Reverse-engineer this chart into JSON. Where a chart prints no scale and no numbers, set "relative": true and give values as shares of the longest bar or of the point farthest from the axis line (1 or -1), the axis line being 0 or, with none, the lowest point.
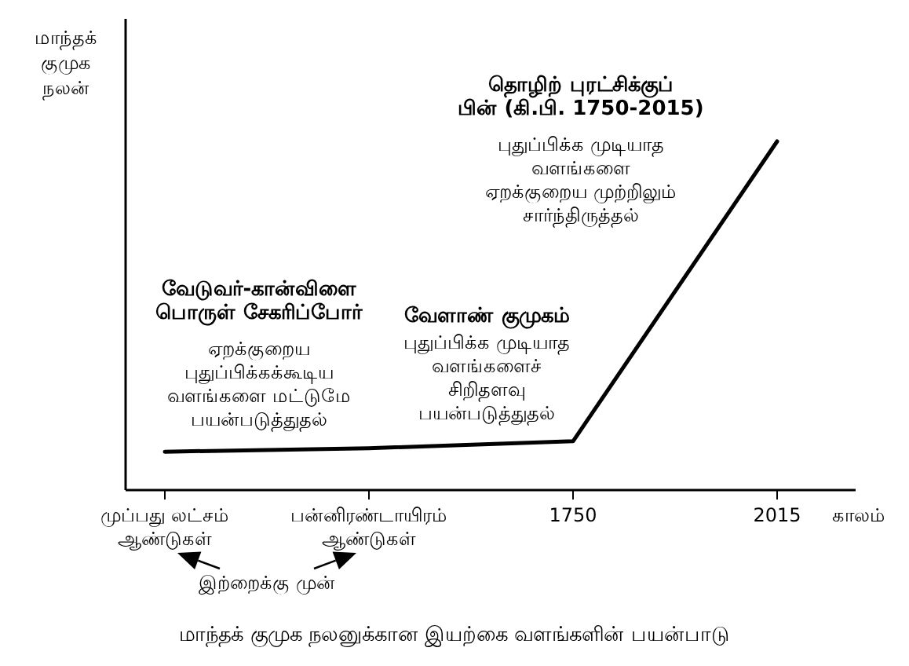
{
  "chart_data": {
    "type": "line",
    "relative": true,
    "title": "மாந்தக் குமுக நலனுக்கான இயற்கை வளங்களின் பயன்பாடு",
    "ylabel": "மாந்தக் குமுக நலன்",
    "xlabel": "காலம்",
    "categories": [
      "முப்பது லட்சம் ஆண்டுகள்",
      "பன்னிரண்டாயிரம் ஆண்டுகள்",
      "1750",
      "2015"
    ],
    "series": [
      {
        "color": "#000000",
        "values": [
          0.11,
          0.12,
          0.14,
          1
        ]
      }
    ],
    "marker": "none",
    "line_style": "solid",
    "annotations": [
      "வேடுவர்-கான்விளை\nபொருள் சேகரிப்போர்",
      "ஏறக்குறைய\nபுதுப்பிக்கக்கூடிய\nவளங்களை மட்டுமே\nபயன்படுத்துதல்",
      "வேளாண் குமுகம்",
      "புதுப்பிக்க முடியாத\nவளங்களைச்\nசிறிதளவு\nபயன்படுத்துதல்",
      "தொழிற் புரட்சிக்குப்\nபின் (கி.பி. 1750-2015)",
      "புதுப்பிக்க முடியாத\nவளங்களை\nஏறக்குறைய முற்றிலும்\nசார்ந்திருத்தல்",
      "இற்றைக்கு முன்"
    ]
  }
}
